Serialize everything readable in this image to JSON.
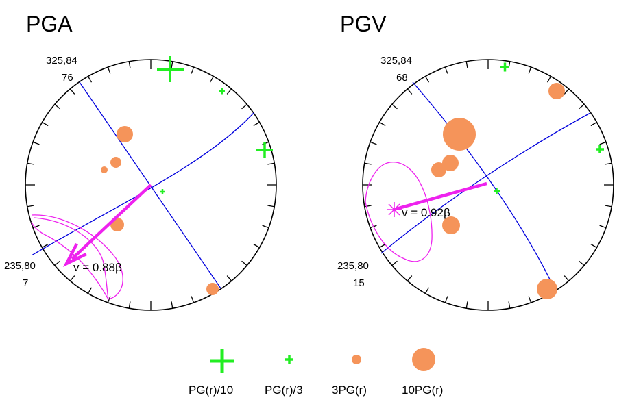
{
  "colors": {
    "plane": "#0000dd",
    "directivity": "#ee22ee",
    "positive": "#f5945a",
    "negative": "#22ee22",
    "frame": "#000000"
  },
  "panels": [
    {
      "title": "PGA",
      "plane1_label": "325,84",
      "plane1_sub": "76",
      "plane2_label": "235,80",
      "plane2_sub": "7",
      "velocity_label": "v = 0.88β"
    },
    {
      "title": "PGV",
      "plane1_label": "325,84",
      "plane1_sub": "68",
      "plane2_label": "235,80",
      "plane2_sub": "15",
      "velocity_label": "v = 0.92β"
    }
  ],
  "legend": [
    {
      "label": "PG(r)/10",
      "symbol": "plus-large"
    },
    {
      "label": "PG(r)/3",
      "symbol": "plus-small"
    },
    {
      "label": "3PG(r)",
      "symbol": "circle-small"
    },
    {
      "label": "10PG(r)",
      "symbol": "circle-large"
    }
  ]
}
